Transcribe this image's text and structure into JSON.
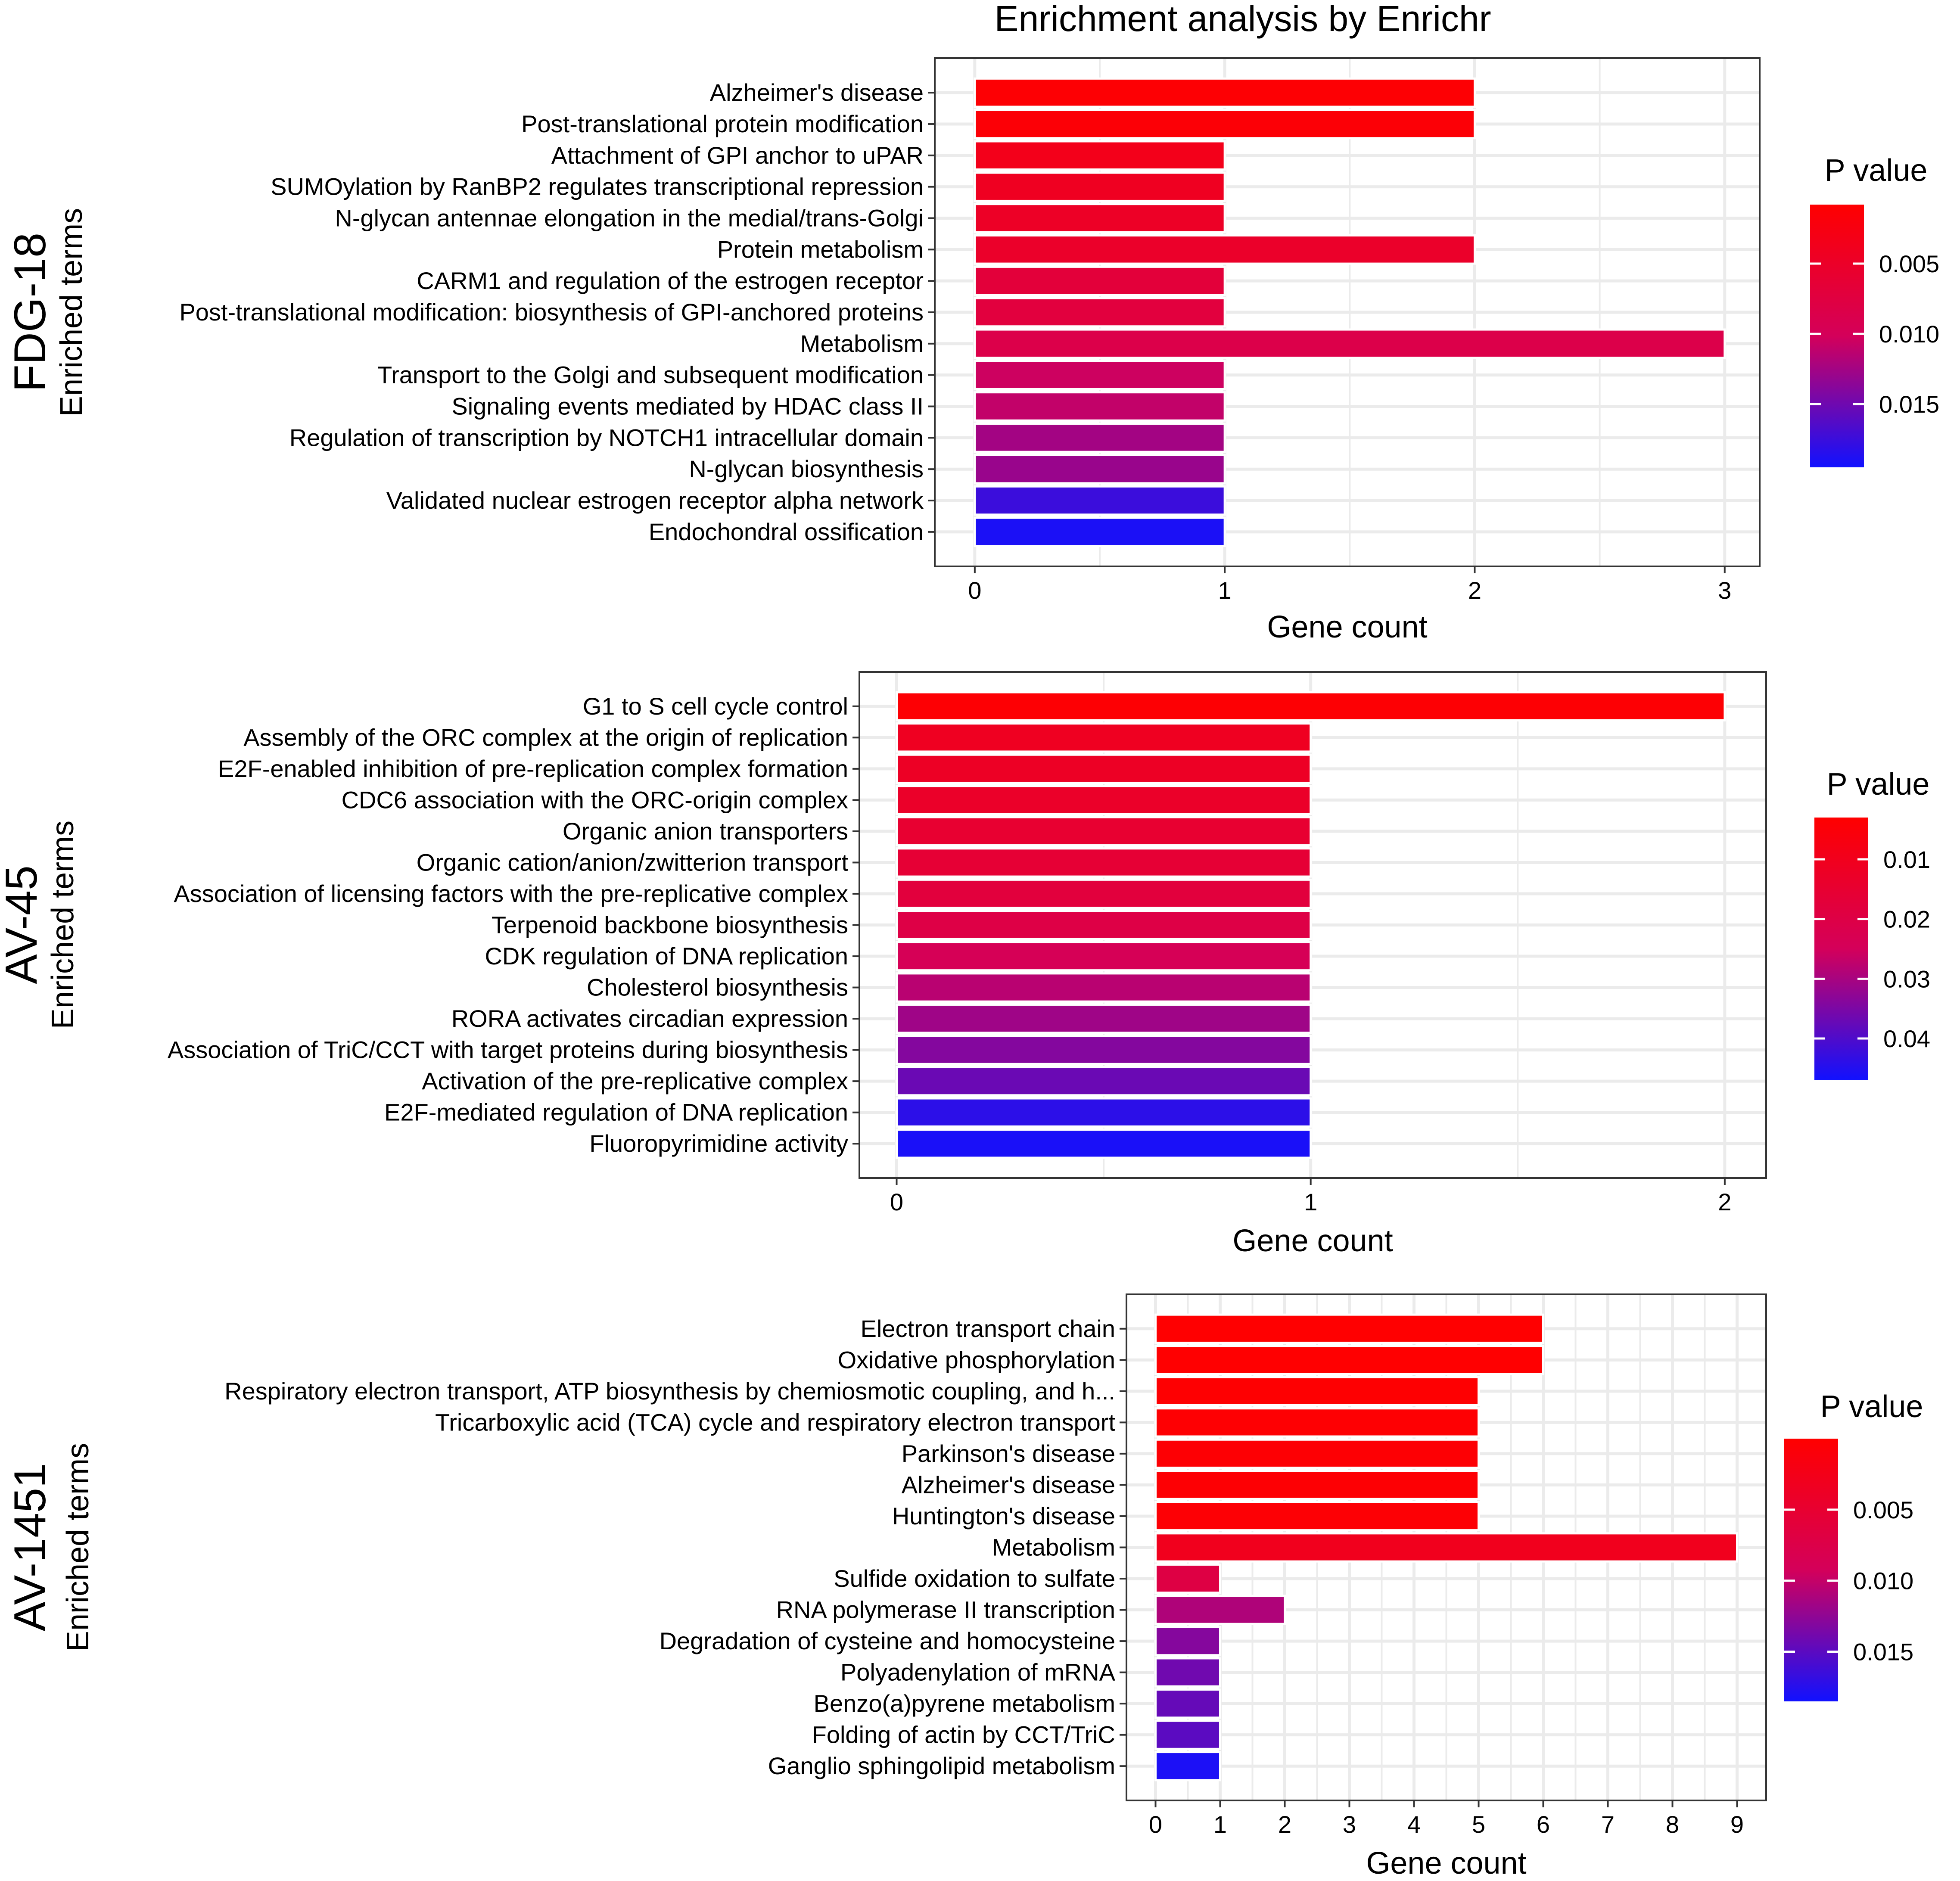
{
  "figure_title": "Enrichment analysis by Enrichr",
  "colors": {
    "low_p": "#ff0000",
    "mid_p": "#d4005a",
    "high_p": "#1111ff",
    "grid": "#ebebeb",
    "panel_border": "#333333",
    "bar_separator": "#ffffff"
  },
  "chart_data": [
    {
      "type": "bar",
      "orientation": "horizontal",
      "panel_label": "FDG-18",
      "xlabel": "Gene count",
      "ylabel": "Enriched terms",
      "xlim": [
        -0.16,
        3.14
      ],
      "xticks": [
        0,
        1,
        2,
        3
      ],
      "xtick_labels": [
        "0",
        "1",
        "2",
        "3"
      ],
      "grid": true,
      "legend": {
        "title": "P value",
        "position": "right",
        "ticks": [
          0.005,
          0.01,
          0.015
        ],
        "tick_labels": [
          "0.005",
          "0.010",
          "0.015"
        ],
        "range": [
          0.0008,
          0.0195
        ]
      },
      "categories": [
        "Alzheimer's disease",
        "Post-translational protein modification",
        "Attachment of GPI anchor to uPAR",
        "SUMOylation by RanBP2 regulates transcriptional repression",
        "N-glycan antennae elongation in the medial/trans-Golgi",
        "Protein metabolism",
        "CARM1 and regulation of the estrogen receptor",
        "Post-translational modification: biosynthesis of GPI-anchored proteins",
        "Metabolism",
        "Transport to the Golgi and subsequent modification",
        "Signaling events mediated by HDAC class II",
        "Regulation of transcription by NOTCH1 intracellular domain",
        "N-glycan biosynthesis",
        "Validated nuclear estrogen receptor alpha network",
        "Endochondral ossification"
      ],
      "values": [
        2,
        2,
        1,
        1,
        1,
        2,
        1,
        1,
        3,
        1,
        1,
        1,
        1,
        1,
        1
      ],
      "p_values": [
        0.0012,
        0.0014,
        0.0035,
        0.0042,
        0.0047,
        0.0052,
        0.0068,
        0.0072,
        0.0085,
        0.0105,
        0.011,
        0.0125,
        0.013,
        0.0175,
        0.019
      ]
    },
    {
      "type": "bar",
      "orientation": "horizontal",
      "panel_label": "AV-45",
      "xlabel": "Gene count",
      "ylabel": "Enriched terms",
      "xlim": [
        -0.09,
        2.1
      ],
      "xticks": [
        0,
        1,
        2
      ],
      "xtick_labels": [
        "0",
        "1",
        "2"
      ],
      "grid": true,
      "legend": {
        "title": "P value",
        "position": "right",
        "ticks": [
          0.01,
          0.02,
          0.03,
          0.04
        ],
        "tick_labels": [
          "0.01",
          "0.02",
          "0.03",
          "0.04"
        ],
        "range": [
          0.003,
          0.047
        ]
      },
      "categories": [
        "G1 to S cell cycle control",
        "Assembly of the ORC complex at the origin of replication",
        "E2F-enabled inhibition of pre-replication complex formation",
        "CDC6 association with the ORC-origin complex",
        "Organic anion transporters",
        "Organic cation/anion/zwitterion transport",
        "Association of licensing factors with the pre-replicative complex",
        "Terpenoid backbone biosynthesis",
        "CDK regulation of DNA replication",
        "Cholesterol biosynthesis",
        "RORA activates circadian expression",
        "Association of TriC/CCT with target proteins during biosynthesis",
        "Activation of the pre-replicative complex",
        "E2F-mediated regulation of DNA replication",
        "Fluoropyrimidine activity"
      ],
      "values": [
        2,
        1,
        1,
        1,
        1,
        1,
        1,
        1,
        1,
        1,
        1,
        1,
        1,
        1,
        1
      ],
      "p_values": [
        0.004,
        0.011,
        0.012,
        0.013,
        0.015,
        0.016,
        0.018,
        0.02,
        0.024,
        0.028,
        0.031,
        0.034,
        0.037,
        0.044,
        0.046
      ]
    },
    {
      "type": "bar",
      "orientation": "horizontal",
      "panel_label": "AV-1451",
      "xlabel": "Gene count",
      "ylabel": "Enriched terms",
      "xlim": [
        -0.45,
        9.45
      ],
      "xticks": [
        0,
        1,
        2,
        3,
        4,
        5,
        6,
        7,
        8,
        9
      ],
      "xtick_labels": [
        "0",
        "1",
        "2",
        "3",
        "4",
        "5",
        "6",
        "7",
        "8",
        "9"
      ],
      "grid": true,
      "legend": {
        "title": "P value",
        "position": "right",
        "ticks": [
          0.005,
          0.01,
          0.015
        ],
        "tick_labels": [
          "0.005",
          "0.010",
          "0.015"
        ],
        "range": [
          0.0,
          0.0185
        ]
      },
      "categories": [
        "Electron transport chain",
        "Oxidative phosphorylation",
        "Respiratory electron transport, ATP biosynthesis by chemiosmotic coupling, and h...",
        "Tricarboxylic acid (TCA) cycle and respiratory electron transport",
        "Parkinson's disease",
        "Alzheimer's disease",
        "Huntington's disease",
        "Metabolism",
        "Sulfide oxidation to sulfate",
        "RNA polymerase II transcription",
        "Degradation of cysteine and homocysteine",
        "Polyadenylation of mRNA",
        "Benzo(a)pyrene metabolism",
        "Folding of actin by CCT/TriC",
        "Ganglio sphingolipid metabolism"
      ],
      "values": [
        6,
        6,
        5,
        5,
        5,
        5,
        5,
        9,
        1,
        2,
        1,
        1,
        1,
        1,
        1
      ],
      "p_values": [
        0.0001,
        0.0001,
        0.0002,
        0.0003,
        0.0004,
        0.0004,
        0.0005,
        0.003,
        0.007,
        0.011,
        0.013,
        0.014,
        0.0145,
        0.015,
        0.018
      ]
    }
  ]
}
